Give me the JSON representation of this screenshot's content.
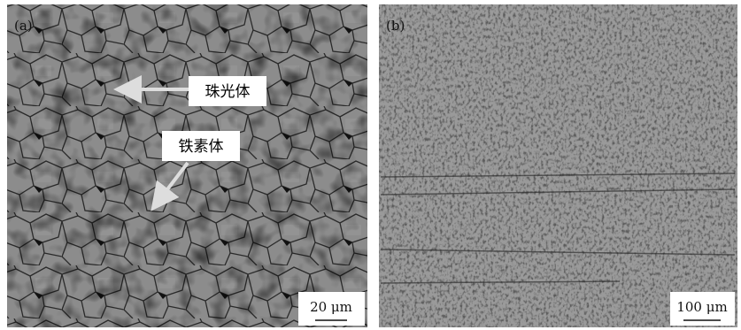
{
  "panels": [
    {
      "label": "(a)",
      "annotations": [
        "珠光体",
        "铁素体"
      ],
      "scale_bar": "20 μm"
    },
    {
      "label": "(b)",
      "scale_bar": "100 μm"
    }
  ]
}
